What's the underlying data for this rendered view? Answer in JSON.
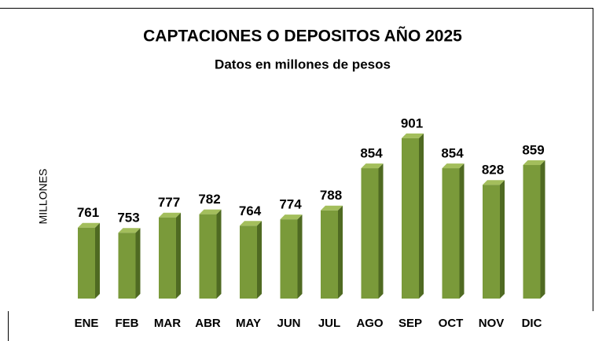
{
  "chart_data": {
    "type": "bar3d",
    "title": "CAPTACIONES O DEPOSITOS AÑO 2025",
    "subtitle": "Datos en millones de pesos",
    "y_label": "MILLONES",
    "categories": [
      "ENE",
      "FEB",
      "MAR",
      "ABR",
      "MAY",
      "JUN",
      "JUL",
      "AGO",
      "SEP",
      "OCT",
      "NOV",
      "DIC"
    ],
    "values": [
      761,
      753,
      777,
      782,
      764,
      774,
      788,
      854,
      901,
      854,
      828,
      859
    ],
    "color": "#7a9a3a",
    "ylim": [
      650,
      950
    ]
  }
}
